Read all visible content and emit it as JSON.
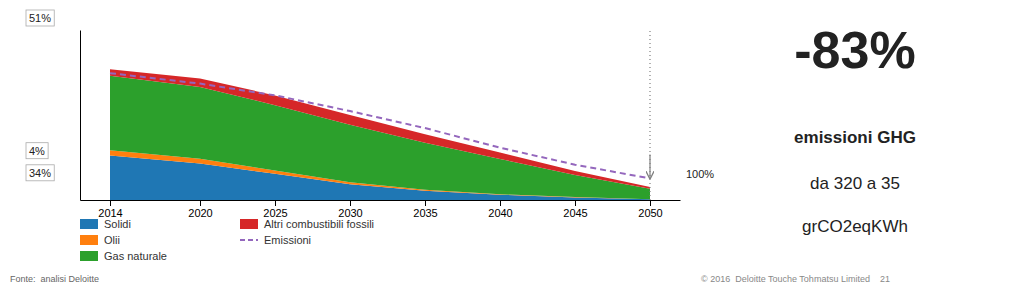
{
  "chart_data": {
    "type": "area",
    "stacked": true,
    "x": [
      2014,
      2020,
      2025,
      2030,
      2035,
      2040,
      2045,
      2050
    ],
    "xlim": [
      2012,
      2052
    ],
    "xticks": [
      2014,
      2020,
      2025,
      2030,
      2035,
      2040,
      2045,
      2050
    ],
    "ylim": [
      0,
      1.3
    ],
    "tick_labels": "x",
    "legend": "bottom",
    "series": [
      {
        "name": "Solidi",
        "values": [
          0.34,
          0.28,
          0.2,
          0.12,
          0.07,
          0.04,
          0.02,
          0.005
        ]
      },
      {
        "name": "Olii",
        "values": [
          0.04,
          0.035,
          0.025,
          0.015,
          0.008,
          0.004,
          0.002,
          0.001
        ]
      },
      {
        "name": "Gas naturale",
        "values": [
          0.57,
          0.55,
          0.5,
          0.44,
          0.36,
          0.27,
          0.17,
          0.08
        ]
      },
      {
        "name": "Altri combustibili fossili",
        "values": [
          0.05,
          0.065,
          0.075,
          0.075,
          0.065,
          0.05,
          0.03,
          0.014
        ]
      },
      {
        "name": "Emissioni",
        "type": "line",
        "line_style": "dashed",
        "values": [
          0.97,
          0.89,
          0.8,
          0.68,
          0.55,
          0.4,
          0.27,
          0.165
        ]
      }
    ],
    "annotations": [
      "51%",
      "4%",
      "34%",
      "100%",
      "-83%",
      "emissioni GHG",
      "da 320 a 35",
      "grCO2eqKWh",
      "Fonte:  analisi Deloitte",
      "© 2016  Deloitte Touche Tohmatsu Limited    21"
    ]
  }
}
